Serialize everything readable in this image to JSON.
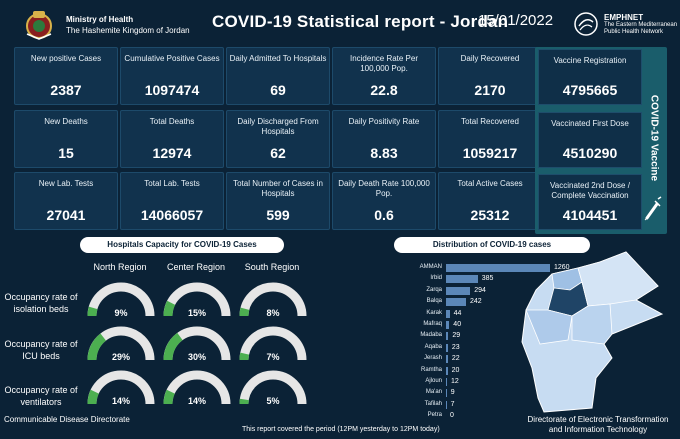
{
  "header": {
    "ministry_line1": "Ministry of Health",
    "ministry_line2": "The Hashemite Kingdom of Jordan",
    "title": "COVID-19 Statistical report - Jordan",
    "date": "15/01/2022",
    "emphnet_name": "EMPHNET",
    "emphnet_line1": "The Eastern Mediterranean",
    "emphnet_line2": "Public Health Network"
  },
  "stats": [
    [
      {
        "label": "New positive Cases",
        "value": "2387"
      },
      {
        "label": "Cumulative  Positive Cases",
        "value": "1097474"
      },
      {
        "label": "Daily Admitted To Hospitals",
        "value": "69"
      },
      {
        "label": "Incidence Rate Per 100,000 Pop.",
        "value": "22.8"
      },
      {
        "label": "Daily Recovered",
        "value": "2170"
      }
    ],
    [
      {
        "label": "New Deaths",
        "value": "15"
      },
      {
        "label": "Total Deaths",
        "value": "12974"
      },
      {
        "label": "Daily Discharged From Hospitals",
        "value": "62"
      },
      {
        "label": "Daily Positivity Rate",
        "value": "8.83"
      },
      {
        "label": "Total Recovered",
        "value": "1059217"
      }
    ],
    [
      {
        "label": "New Lab. Tests",
        "value": "27041"
      },
      {
        "label": "Total Lab. Tests",
        "value": "14066057"
      },
      {
        "label": "Total Number of Cases in Hospitals",
        "value": "599"
      },
      {
        "label": "Daily Death Rate 100,000 Pop.",
        "value": "0.6"
      },
      {
        "label": "Total Active Cases",
        "value": "25312"
      }
    ]
  ],
  "vaccine": {
    "vertical_label": "COVID-19 Vaccine",
    "cards": [
      {
        "label": "Vaccine Registration",
        "value": "4795665"
      },
      {
        "label": "Vaccinated First Dose",
        "value": "4510290"
      },
      {
        "label": "Vaccinated 2nd Dose / Complete Vaccination",
        "value": "4104451"
      }
    ]
  },
  "hospitals": {
    "title": "Hospitals Capacity for COVID-19 Cases",
    "regions": [
      "North Region",
      "Center Region",
      "South Region"
    ],
    "rows": [
      {
        "label": "Occupancy rate of isolation beds",
        "values": [
          9,
          15,
          8
        ]
      },
      {
        "label": "Occupancy rate of ICU beds",
        "values": [
          29,
          30,
          7
        ]
      },
      {
        "label": "Occupancy rate of ventilators",
        "values": [
          14,
          14,
          5
        ]
      }
    ],
    "colors": {
      "track": "#e6e6e6",
      "fill": "#4caf50"
    }
  },
  "chart_data": {
    "type": "bar",
    "title": "Distribution of COVID-19 cases",
    "categories": [
      "AMMAN",
      "Irbid",
      "Zarqa",
      "Balqa",
      "Karak",
      "Mafraq",
      "Madaba",
      "Aqaba",
      "Jerash",
      "Ramtha",
      "Ajloun",
      "Ma'an",
      "Tafilah",
      "Petra"
    ],
    "values": [
      1260,
      385,
      294,
      242,
      44,
      40,
      29,
      23,
      22,
      20,
      12,
      9,
      7,
      0
    ],
    "orientation": "horizontal",
    "bar_color": "#5b87b8"
  },
  "footer": {
    "left": "Communicable Disease Directorate",
    "middle": "This report covered the period (12PM yesterday to 12PM today)",
    "right_line1": "Directorate of Electronic Transformation",
    "right_line2": "and Information Technology"
  }
}
